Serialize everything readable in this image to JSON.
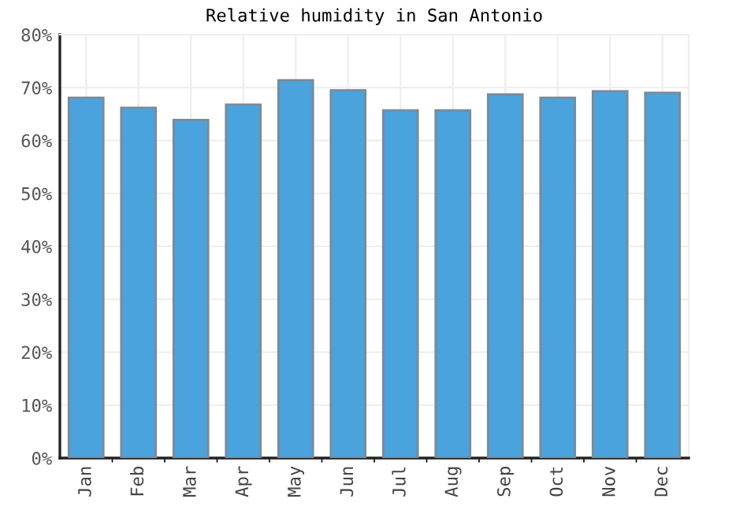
{
  "chart_data": {
    "type": "bar",
    "title": "Relative humidity in San Antonio",
    "categories": [
      "Jan",
      "Feb",
      "Mar",
      "Apr",
      "May",
      "Jun",
      "Jul",
      "Aug",
      "Sep",
      "Oct",
      "Nov",
      "Dec"
    ],
    "values": [
      68.1,
      66.2,
      63.9,
      66.8,
      71.4,
      69.5,
      65.7,
      65.7,
      68.7,
      68.1,
      69.3,
      69.0
    ],
    "color": "#4aa3dd",
    "ylim": [
      0,
      80
    ],
    "yticks": [
      {
        "value": 0,
        "label": "0%"
      },
      {
        "value": 10,
        "label": "10%"
      },
      {
        "value": 20,
        "label": "20%"
      },
      {
        "value": 30,
        "label": "30%"
      },
      {
        "value": 40,
        "label": "40%"
      },
      {
        "value": 50,
        "label": "50%"
      },
      {
        "value": 60,
        "label": "60%"
      },
      {
        "value": 70,
        "label": "70%"
      },
      {
        "value": 80,
        "label": "80%"
      }
    ],
    "grid": true
  }
}
